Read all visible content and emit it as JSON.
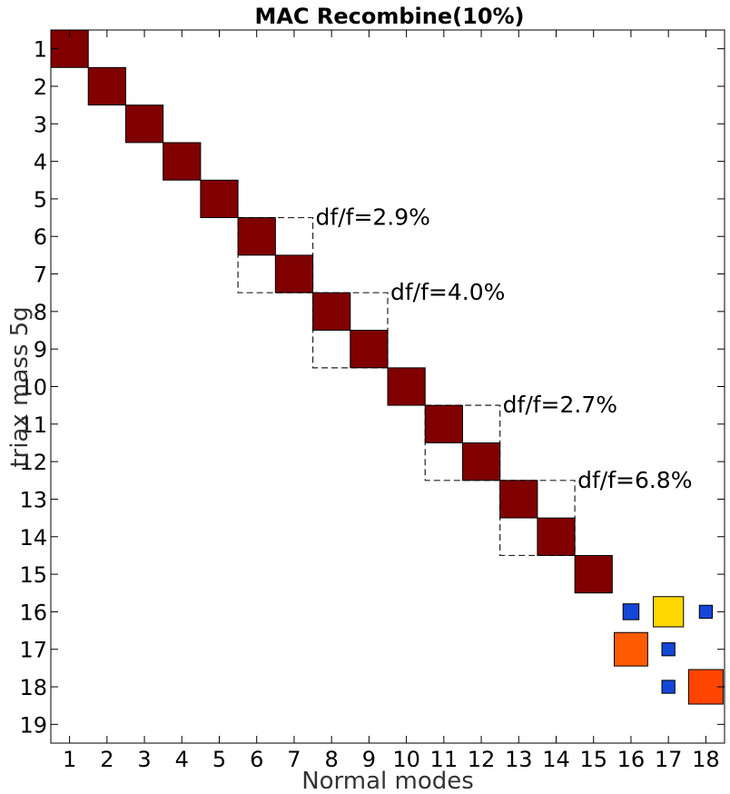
{
  "chart_data": {
    "type": "heatmap",
    "title": "MAC Recombine(10%)",
    "xlabel": "Normal modes",
    "ylabel": "triax mass 5g",
    "x_ticks": [
      "1",
      "2",
      "3",
      "4",
      "5",
      "6",
      "7",
      "8",
      "9",
      "10",
      "11",
      "12",
      "13",
      "14",
      "15",
      "16",
      "17",
      "18"
    ],
    "y_ticks": [
      "1",
      "2",
      "3",
      "4",
      "5",
      "6",
      "7",
      "8",
      "9",
      "10",
      "11",
      "12",
      "13",
      "14",
      "15",
      "16",
      "17",
      "18",
      "19"
    ],
    "xlim": [
      0.5,
      18.5
    ],
    "ylim": [
      0.5,
      19.5
    ],
    "grid": false,
    "cells": [
      {
        "x": 1,
        "y": 1,
        "value": 1.0
      },
      {
        "x": 2,
        "y": 2,
        "value": 1.0
      },
      {
        "x": 3,
        "y": 3,
        "value": 1.0
      },
      {
        "x": 4,
        "y": 4,
        "value": 1.0
      },
      {
        "x": 5,
        "y": 5,
        "value": 1.0
      },
      {
        "x": 6,
        "y": 6,
        "value": 1.0
      },
      {
        "x": 7,
        "y": 7,
        "value": 1.0
      },
      {
        "x": 8,
        "y": 8,
        "value": 1.0
      },
      {
        "x": 9,
        "y": 9,
        "value": 1.0
      },
      {
        "x": 10,
        "y": 10,
        "value": 1.0
      },
      {
        "x": 11,
        "y": 11,
        "value": 1.0
      },
      {
        "x": 12,
        "y": 12,
        "value": 1.0
      },
      {
        "x": 13,
        "y": 13,
        "value": 1.0
      },
      {
        "x": 14,
        "y": 14,
        "value": 1.0
      },
      {
        "x": 15,
        "y": 15,
        "value": 1.0
      },
      {
        "x": 17,
        "y": 16,
        "value": 0.65
      },
      {
        "x": 16,
        "y": 16,
        "value": 0.18
      },
      {
        "x": 18,
        "y": 16,
        "value": 0.12
      },
      {
        "x": 16,
        "y": 17,
        "value": 0.8
      },
      {
        "x": 17,
        "y": 17,
        "value": 0.12
      },
      {
        "x": 17,
        "y": 18,
        "value": 0.12
      },
      {
        "x": 18,
        "y": 18,
        "value": 0.85
      }
    ],
    "annotations": [
      {
        "text": "df/f=2.9%",
        "modes_x": [
          6,
          7
        ],
        "modes_y": [
          6,
          7
        ]
      },
      {
        "text": "df/f=4.0%",
        "modes_x": [
          8,
          9
        ],
        "modes_y": [
          8,
          9
        ]
      },
      {
        "text": "df/f=2.7%",
        "modes_x": [
          11,
          12
        ],
        "modes_y": [
          11,
          12
        ]
      },
      {
        "text": "df/f=6.8%",
        "modes_x": [
          13,
          14
        ],
        "modes_y": [
          13,
          14
        ]
      }
    ],
    "colors": {
      "high": "#800000",
      "orange_red": "#ff4500",
      "orange": "#ff5a00",
      "yellow": "#ffd700",
      "low": "#1446d8"
    }
  }
}
